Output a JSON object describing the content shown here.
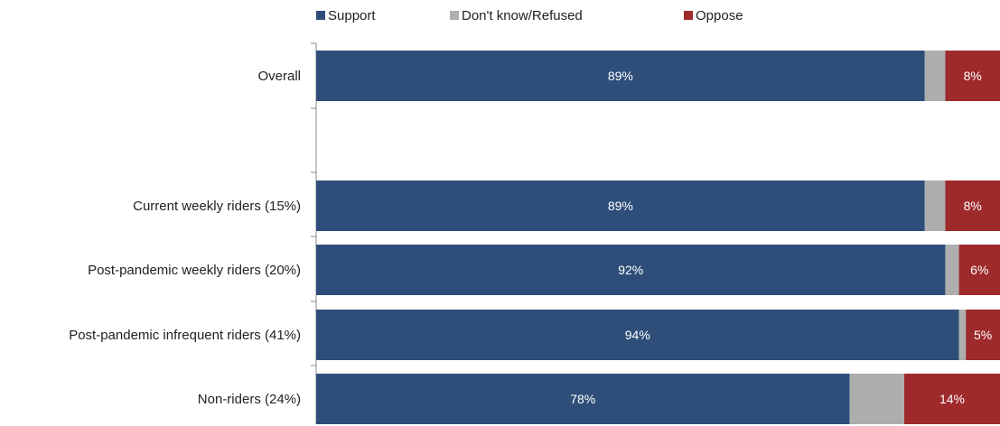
{
  "chart_data": {
    "type": "bar",
    "orientation": "horizontal",
    "stacked": true,
    "categories": [
      "Overall",
      "",
      "Current weekly riders (15%)",
      "Post-pandemic weekly riders (20%)",
      "Post-pandemic infrequent riders (41%)",
      "Non-riders (24%)"
    ],
    "series": [
      {
        "name": "Support",
        "color": "#2e4e79",
        "values": [
          89,
          null,
          89,
          92,
          94,
          78
        ],
        "labels": [
          "89%",
          "",
          "89%",
          "92%",
          "94%",
          "78%"
        ]
      },
      {
        "name": "Don't know/Refused",
        "color": "#aeaeae",
        "values": [
          3,
          null,
          3,
          2,
          1,
          8
        ],
        "labels": [
          "",
          "",
          "",
          "",
          "",
          ""
        ]
      },
      {
        "name": "Oppose",
        "color": "#9e2a2b",
        "values": [
          8,
          null,
          8,
          6,
          5,
          14
        ],
        "labels": [
          "8%",
          "",
          "8%",
          "6%",
          "5%",
          "14%"
        ]
      }
    ],
    "xlim": [
      0,
      100
    ],
    "legend": "top",
    "grid": false
  }
}
